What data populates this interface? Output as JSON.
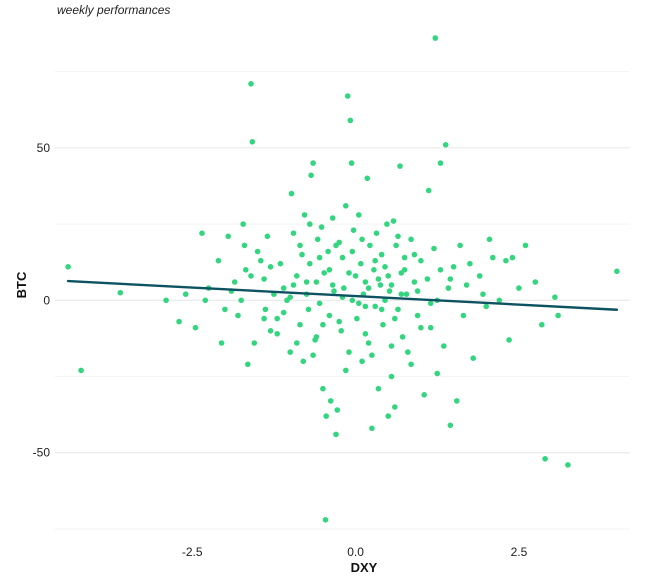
{
  "chart_data": {
    "type": "scatter",
    "subtitle": "weekly performances",
    "xlabel": "DXY",
    "ylabel": "BTC",
    "xlim": [
      -4.6,
      4.2
    ],
    "ylim": [
      -76,
      88
    ],
    "xticks": [
      -2.5,
      0.0,
      2.5
    ],
    "xtick_labels": [
      "-2.5",
      "0.0",
      "2.5"
    ],
    "yticks": [
      -50,
      0,
      50
    ],
    "ytick_labels": [
      "-50",
      "0",
      "50"
    ],
    "grid": true,
    "legend": "none",
    "point_color": "#33d67f",
    "line_color": "#0d5260",
    "trend_line": {
      "x": [
        -4.4,
        4.0
      ],
      "y": [
        6.3,
        -3.1
      ]
    },
    "points": [
      [
        -4.4,
        11
      ],
      [
        -4.2,
        -23
      ],
      [
        -3.6,
        2.5
      ],
      [
        -2.9,
        0
      ],
      [
        -2.7,
        -7
      ],
      [
        -2.6,
        2
      ],
      [
        -2.45,
        -9
      ],
      [
        -2.35,
        22
      ],
      [
        -2.3,
        0
      ],
      [
        -2.25,
        4
      ],
      [
        -2.1,
        13
      ],
      [
        -2.05,
        -14
      ],
      [
        -1.95,
        21
      ],
      [
        -1.9,
        3
      ],
      [
        -1.85,
        6
      ],
      [
        -1.8,
        -5
      ],
      [
        -1.75,
        0
      ],
      [
        -1.72,
        25
      ],
      [
        -1.7,
        18
      ],
      [
        -1.68,
        10
      ],
      [
        -1.65,
        -21
      ],
      [
        -1.6,
        71
      ],
      [
        -1.58,
        52
      ],
      [
        -1.55,
        -14
      ],
      [
        -1.5,
        16
      ],
      [
        -1.45,
        13
      ],
      [
        -1.4,
        7
      ],
      [
        -1.38,
        -3
      ],
      [
        -1.35,
        21
      ],
      [
        -1.3,
        -10
      ],
      [
        -1.25,
        2
      ],
      [
        -1.2,
        -6
      ],
      [
        -1.15,
        12
      ],
      [
        -1.1,
        4
      ],
      [
        -1.05,
        0
      ],
      [
        -1.0,
        -17
      ],
      [
        -0.98,
        35
      ],
      [
        -0.95,
        22
      ],
      [
        -0.9,
        8
      ],
      [
        -0.85,
        -8
      ],
      [
        -0.82,
        15
      ],
      [
        -0.8,
        -20
      ],
      [
        -0.78,
        28
      ],
      [
        -0.75,
        2
      ],
      [
        -0.72,
        -3
      ],
      [
        -0.7,
        12
      ],
      [
        -0.68,
        41
      ],
      [
        -0.65,
        45
      ],
      [
        -0.62,
        -13
      ],
      [
        -0.6,
        6
      ],
      [
        -0.58,
        20
      ],
      [
        -0.55,
        -1
      ],
      [
        -0.52,
        24
      ],
      [
        -0.5,
        -29
      ],
      [
        -0.48,
        9
      ],
      [
        -0.46,
        -72
      ],
      [
        -0.45,
        -38
      ],
      [
        -0.42,
        16
      ],
      [
        -0.4,
        -5
      ],
      [
        -0.38,
        -33
      ],
      [
        -0.35,
        27
      ],
      [
        -0.33,
        3
      ],
      [
        -0.3,
        -44
      ],
      [
        -0.28,
        -36
      ],
      [
        -0.25,
        19
      ],
      [
        -0.22,
        -10
      ],
      [
        -0.2,
        14
      ],
      [
        -0.18,
        4
      ],
      [
        -0.15,
        31
      ],
      [
        -0.12,
        67
      ],
      [
        -0.1,
        -17
      ],
      [
        -0.08,
        59
      ],
      [
        -0.06,
        45
      ],
      [
        -0.05,
        0
      ],
      [
        -0.03,
        23
      ],
      [
        0.0,
        8
      ],
      [
        0.02,
        -6
      ],
      [
        0.05,
        28
      ],
      [
        0.08,
        12
      ],
      [
        0.1,
        -20
      ],
      [
        0.12,
        2
      ],
      [
        0.15,
        6
      ],
      [
        0.18,
        40
      ],
      [
        0.2,
        -14
      ],
      [
        0.22,
        18
      ],
      [
        0.25,
        -42
      ],
      [
        0.28,
        10
      ],
      [
        0.3,
        -2
      ],
      [
        0.32,
        22
      ],
      [
        0.35,
        -29
      ],
      [
        0.38,
        5
      ],
      [
        0.4,
        15
      ],
      [
        0.42,
        -8
      ],
      [
        0.45,
        11
      ],
      [
        0.48,
        25
      ],
      [
        0.5,
        -38
      ],
      [
        0.52,
        3
      ],
      [
        0.55,
        -25
      ],
      [
        0.58,
        26
      ],
      [
        0.6,
        -35
      ],
      [
        0.62,
        18
      ],
      [
        0.65,
        -3
      ],
      [
        0.68,
        44
      ],
      [
        0.7,
        9
      ],
      [
        0.72,
        -12
      ],
      [
        0.75,
        14
      ],
      [
        0.78,
        2
      ],
      [
        0.8,
        -17
      ],
      [
        0.85,
        20
      ],
      [
        0.9,
        6
      ],
      [
        0.95,
        -5
      ],
      [
        1.0,
        13
      ],
      [
        1.05,
        -31
      ],
      [
        1.1,
        7
      ],
      [
        1.12,
        36
      ],
      [
        1.15,
        -9
      ],
      [
        1.2,
        17
      ],
      [
        1.22,
        86
      ],
      [
        1.25,
        0
      ],
      [
        1.3,
        45
      ],
      [
        1.35,
        -15
      ],
      [
        1.38,
        51
      ],
      [
        1.42,
        4
      ],
      [
        1.45,
        -41
      ],
      [
        1.5,
        11
      ],
      [
        1.55,
        -33
      ],
      [
        1.6,
        18
      ],
      [
        1.65,
        -5
      ],
      [
        1.75,
        12
      ],
      [
        1.8,
        -19
      ],
      [
        1.9,
        8
      ],
      [
        1.95,
        2
      ],
      [
        2.05,
        20
      ],
      [
        2.1,
        14
      ],
      [
        2.2,
        0
      ],
      [
        2.3,
        13
      ],
      [
        2.35,
        -13
      ],
      [
        2.4,
        14
      ],
      [
        2.5,
        4
      ],
      [
        2.6,
        18
      ],
      [
        2.75,
        6
      ],
      [
        2.85,
        -8
      ],
      [
        2.9,
        -52
      ],
      [
        3.05,
        1
      ],
      [
        3.1,
        -5
      ],
      [
        3.25,
        -54
      ],
      [
        4.0,
        9.5
      ],
      [
        -1.3,
        11
      ],
      [
        -0.9,
        -14
      ],
      [
        -0.7,
        25
      ],
      [
        -0.4,
        10
      ],
      [
        -0.25,
        -7
      ],
      [
        -0.05,
        16
      ],
      [
        0.15,
        -11
      ],
      [
        0.35,
        7
      ],
      [
        0.55,
        -15
      ],
      [
        0.75,
        10
      ],
      [
        0.95,
        3
      ],
      [
        1.15,
        -1
      ],
      [
        -1.1,
        -4
      ],
      [
        -0.6,
        -12
      ],
      [
        0.05,
        -1
      ],
      [
        0.45,
        0
      ],
      [
        0.65,
        21
      ],
      [
        -0.15,
        -23
      ],
      [
        0.25,
        -18
      ],
      [
        -1.6,
        8
      ],
      [
        -2.0,
        -3
      ],
      [
        1.7,
        5
      ],
      [
        2.0,
        -2
      ],
      [
        -0.85,
        18
      ],
      [
        0.85,
        -21
      ],
      [
        -0.35,
        5
      ],
      [
        0.1,
        20
      ],
      [
        0.3,
        13
      ],
      [
        0.5,
        8
      ],
      [
        -0.5,
        -8
      ],
      [
        -0.2,
        1
      ],
      [
        0.6,
        -6
      ],
      [
        1.0,
        -9
      ],
      [
        -1.4,
        -6
      ],
      [
        1.3,
        10
      ],
      [
        -0.95,
        5
      ],
      [
        0.7,
        2
      ],
      [
        -0.55,
        14
      ],
      [
        0.2,
        4
      ],
      [
        -0.1,
        9
      ],
      [
        0.4,
        -3
      ],
      [
        -0.65,
        -18
      ],
      [
        0.9,
        15
      ],
      [
        -1.2,
        -11
      ],
      [
        1.25,
        -24
      ],
      [
        -0.3,
        18
      ],
      [
        0.15,
        -2
      ],
      [
        0.55,
        5
      ],
      [
        -0.75,
        6
      ],
      [
        1.45,
        7
      ],
      [
        -1.0,
        1
      ]
    ]
  }
}
